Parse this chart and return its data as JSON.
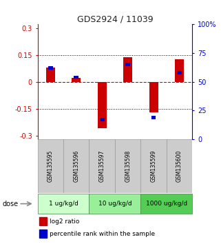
{
  "title": "GDS2924 / 11039",
  "samples": [
    "GSM135595",
    "GSM135596",
    "GSM135597",
    "GSM135598",
    "GSM135599",
    "GSM135600"
  ],
  "log2_ratios": [
    0.08,
    0.02,
    -0.26,
    0.135,
    -0.17,
    0.125
  ],
  "percentile_values": [
    62,
    54,
    17,
    65,
    19,
    58
  ],
  "bar_color_red": "#cc0000",
  "bar_color_blue": "#0000cc",
  "ylim": [
    -0.32,
    0.32
  ],
  "yticks_left": [
    -0.3,
    -0.15,
    0,
    0.15,
    0.3
  ],
  "ytick_labels_left": [
    "-0.3",
    "-0.15",
    "0",
    "0.15",
    "0.3"
  ],
  "yticks_right_pct": [
    0,
    25,
    50,
    75,
    100
  ],
  "ytick_labels_right": [
    "0",
    "25",
    "50",
    "75",
    "100%"
  ],
  "dotted_lines": [
    -0.15,
    0.15
  ],
  "dose_groups": [
    {
      "label": "1 ug/kg/d",
      "color": "#ccffcc",
      "cols": [
        0,
        1
      ]
    },
    {
      "label": "10 ug/kg/d",
      "color": "#99ee99",
      "cols": [
        2,
        3
      ]
    },
    {
      "label": "1000 ug/kg/d",
      "color": "#55cc55",
      "cols": [
        4,
        5
      ]
    }
  ],
  "legend_red_label": "log2 ratio",
  "legend_blue_label": "percentile rank within the sample",
  "bar_width": 0.35,
  "blue_bar_width": 0.18,
  "blue_bar_height": 0.018,
  "dose_label": "dose",
  "title_color": "#222222",
  "left_axis_color": "#cc0000",
  "right_axis_color": "#0000cc",
  "sample_box_color": "#cccccc",
  "sample_box_edge": "#999999",
  "grid_color": "#cccccc"
}
